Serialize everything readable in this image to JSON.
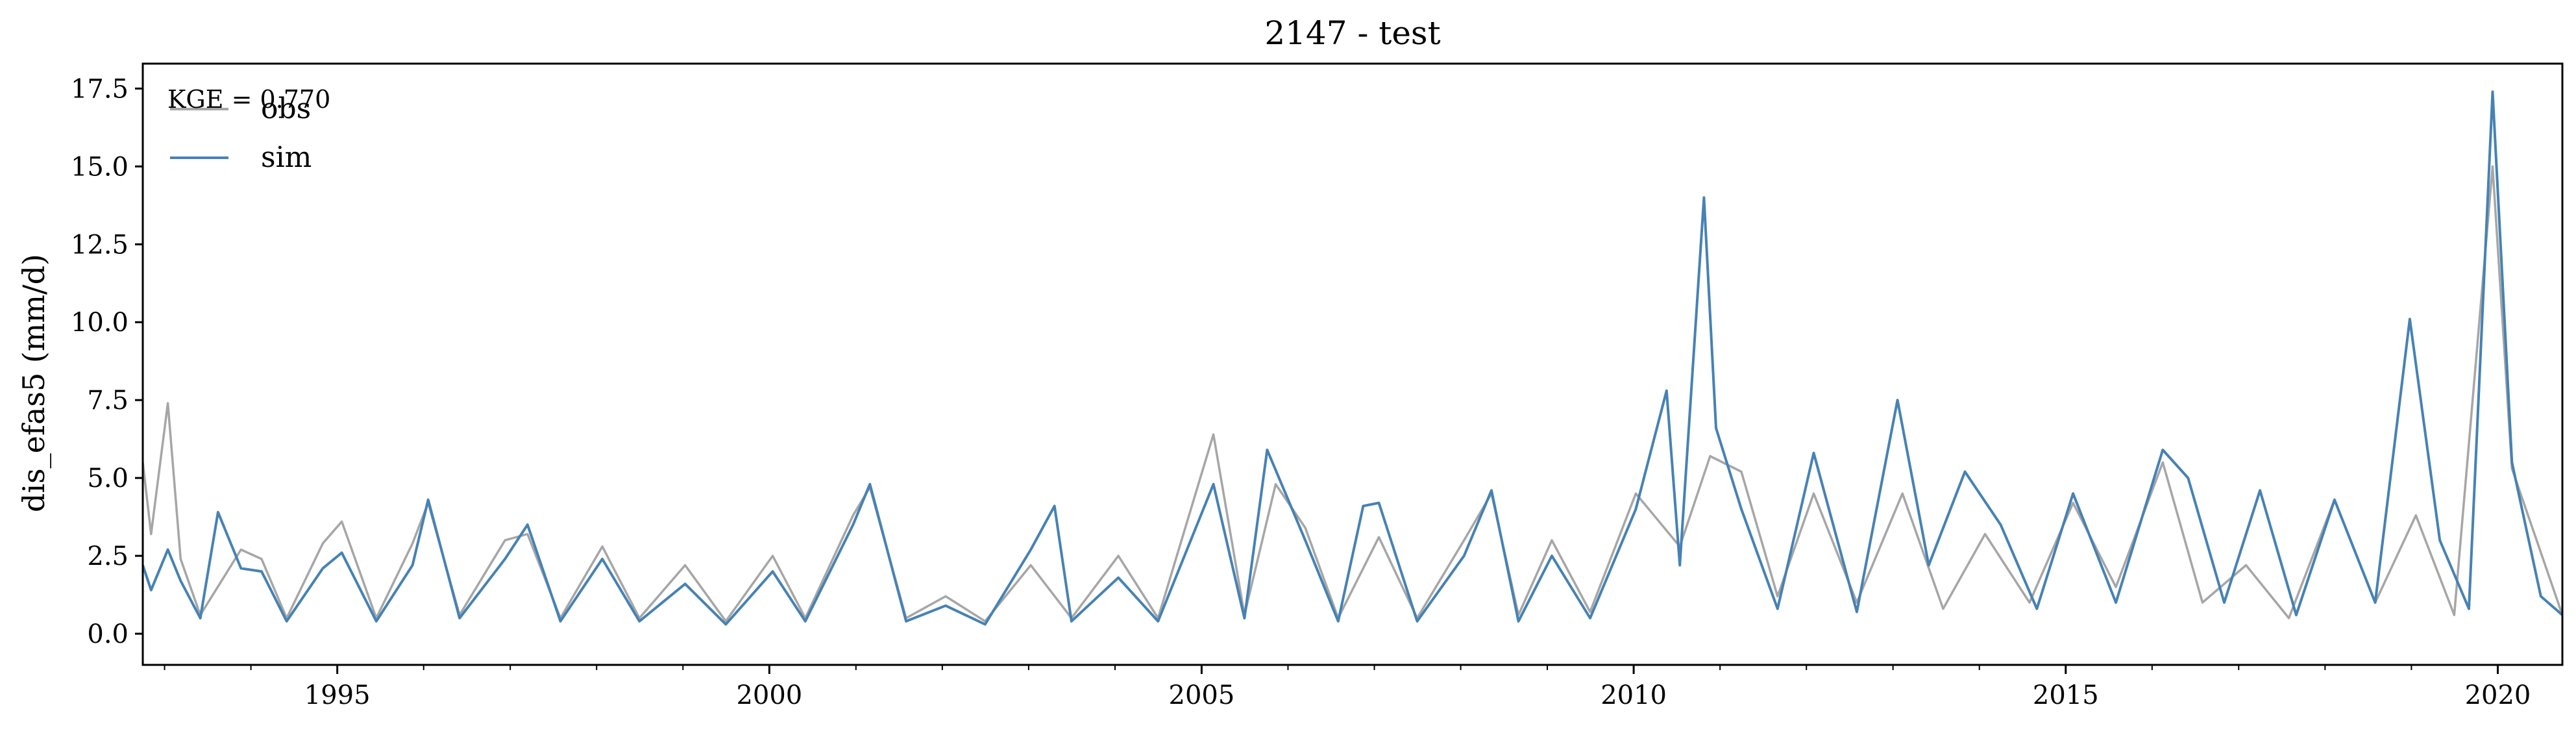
{
  "colors": {
    "obs": "#a6a6a6",
    "sim": "#4682b4",
    "axes": "#000000"
  },
  "chart_data": {
    "type": "line",
    "title": "2147 - test",
    "xlabel": "",
    "ylabel": "dis_efas5 (mm/d)",
    "xlim": [
      "1992-10-01",
      "2020-09-30"
    ],
    "ylim": [
      -1.0,
      18.3
    ],
    "x_ticks": [
      "1995",
      "2000",
      "2005",
      "2010",
      "2015",
      "2020"
    ],
    "y_ticks": [
      "0.0",
      "2.5",
      "5.0",
      "7.5",
      "10.0",
      "12.5",
      "15.0",
      "17.5"
    ],
    "grid": false,
    "legend": {
      "placement": "upper-left",
      "entries": [
        "obs",
        "sim"
      ]
    },
    "annotation": "KGE = 0.770",
    "series": [
      {
        "name": "obs",
        "x": [
          "1992-10-01",
          "1992-11-05",
          "1993-01-15",
          "1993-03-10",
          "1993-06-01",
          "1993-11-20",
          "1994-02-15",
          "1994-06-01",
          "1994-11-01",
          "1995-01-20",
          "1995-06-15",
          "1995-11-15",
          "1996-01-20",
          "1996-06-01",
          "1996-12-10",
          "1997-03-15",
          "1997-08-01",
          "1998-01-25",
          "1998-07-01",
          "1999-01-10",
          "1999-07-01",
          "2000-01-15",
          "2000-06-01",
          "2000-12-20",
          "2001-03-01",
          "2001-08-01",
          "2002-01-15",
          "2002-07-01",
          "2003-01-10",
          "2003-07-01",
          "2004-01-15",
          "2004-07-01",
          "2005-02-20",
          "2005-07-01",
          "2005-11-10",
          "2006-03-15",
          "2006-08-01",
          "2007-01-20",
          "2007-07-01",
          "2008-01-15",
          "2008-05-10",
          "2008-09-01",
          "2009-01-20",
          "2009-07-01",
          "2010-01-10",
          "2010-07-15",
          "2010-11-20",
          "2011-04-01",
          "2011-09-01",
          "2012-02-01",
          "2012-08-01",
          "2013-02-10",
          "2013-08-01",
          "2014-01-25",
          "2014-08-01",
          "2015-02-01",
          "2015-08-01",
          "2016-02-15",
          "2016-08-01",
          "2017-02-01",
          "2017-08-01",
          "2018-02-10",
          "2018-08-01",
          "2019-01-20",
          "2019-07-01",
          "2019-12-10",
          "2020-03-01",
          "2020-09-30"
        ],
        "values": [
          5.5,
          3.2,
          7.4,
          2.4,
          0.6,
          2.7,
          2.4,
          0.5,
          2.9,
          3.6,
          0.5,
          2.9,
          4.2,
          0.6,
          3.0,
          3.2,
          0.5,
          2.8,
          0.5,
          2.2,
          0.4,
          2.5,
          0.5,
          3.8,
          4.7,
          0.5,
          1.2,
          0.4,
          2.2,
          0.5,
          2.5,
          0.5,
          6.4,
          0.6,
          4.8,
          3.4,
          0.5,
          3.1,
          0.5,
          3.0,
          4.5,
          0.6,
          3.0,
          0.7,
          4.5,
          2.8,
          5.7,
          5.2,
          1.2,
          4.5,
          1.0,
          4.5,
          0.8,
          3.2,
          1.0,
          4.2,
          1.5,
          5.5,
          1.0,
          2.2,
          0.5,
          4.3,
          1.0,
          3.8,
          0.6,
          15.0,
          5.3,
          0.6
        ]
      },
      {
        "name": "sim",
        "x": [
          "1992-10-01",
          "1992-11-05",
          "1993-01-15",
          "1993-03-10",
          "1993-06-01",
          "1993-08-15",
          "1993-11-20",
          "1994-02-15",
          "1994-06-01",
          "1994-11-01",
          "1995-01-20",
          "1995-06-15",
          "1995-11-15",
          "1996-01-20",
          "1996-06-01",
          "1996-12-10",
          "1997-03-15",
          "1997-08-01",
          "1998-01-25",
          "1998-07-01",
          "1999-01-10",
          "1999-07-01",
          "2000-01-15",
          "2000-06-01",
          "2000-12-20",
          "2001-03-01",
          "2001-08-01",
          "2002-01-15",
          "2002-07-01",
          "2003-01-10",
          "2003-04-20",
          "2003-07-01",
          "2004-01-15",
          "2004-07-01",
          "2005-02-20",
          "2005-07-01",
          "2005-10-05",
          "2006-03-15",
          "2006-08-01",
          "2006-11-15",
          "2007-01-20",
          "2007-07-01",
          "2008-01-15",
          "2008-05-10",
          "2008-09-01",
          "2009-01-20",
          "2009-07-01",
          "2010-01-10",
          "2010-05-20",
          "2010-07-15",
          "2010-10-25",
          "2010-12-15",
          "2011-04-01",
          "2011-09-01",
          "2012-02-01",
          "2012-08-01",
          "2013-01-20",
          "2013-06-01",
          "2013-11-01",
          "2014-04-01",
          "2014-09-01",
          "2015-02-01",
          "2015-08-01",
          "2016-02-15",
          "2016-06-01",
          "2016-11-01",
          "2017-04-01",
          "2017-09-01",
          "2018-02-10",
          "2018-08-01",
          "2018-12-25",
          "2019-05-01",
          "2019-09-01",
          "2019-12-10",
          "2020-03-01",
          "2020-07-01",
          "2020-09-30"
        ],
        "values": [
          2.2,
          1.4,
          2.7,
          1.7,
          0.5,
          3.9,
          2.1,
          2.0,
          0.4,
          2.1,
          2.6,
          0.4,
          2.2,
          4.3,
          0.5,
          2.4,
          3.5,
          0.4,
          2.4,
          0.4,
          1.6,
          0.3,
          2.0,
          0.4,
          3.5,
          4.8,
          0.4,
          0.9,
          0.3,
          2.7,
          4.1,
          0.4,
          1.8,
          0.4,
          4.8,
          0.5,
          5.9,
          3.0,
          0.4,
          4.1,
          4.2,
          0.4,
          2.5,
          4.6,
          0.4,
          2.5,
          0.5,
          4.0,
          7.8,
          2.2,
          14.0,
          6.6,
          4.0,
          0.8,
          5.8,
          0.7,
          7.5,
          2.2,
          5.2,
          3.5,
          0.8,
          4.5,
          1.0,
          5.9,
          5.0,
          1.0,
          4.6,
          0.6,
          4.3,
          1.0,
          10.1,
          3.0,
          0.8,
          17.4,
          5.5,
          1.2,
          0.6
        ]
      }
    ]
  }
}
